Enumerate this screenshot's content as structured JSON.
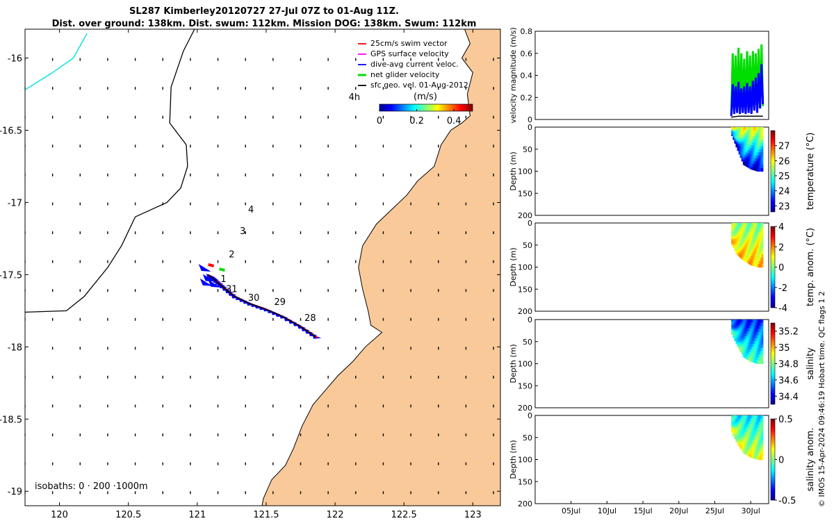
{
  "title_line1": "SL287 Kimberley20120727 27-Jul 07Z to 01-Aug 11Z.",
  "title_line2": "Dist. over ground: 138km. Dist. swum: 112km. Mission DOG: 138km. Swum: 112km",
  "credit": "© IMOS 15-Apr-2024 09:46:19 Hobart time. QC flags 1  2",
  "colors": {
    "land": "#f9c99a",
    "swim": "#ff0000",
    "gps": "#ff00ff",
    "dive": "#0000ff",
    "net": "#00dd00",
    "sfc": "#000000",
    "isobath": "#00e0e0"
  },
  "chart_data": [
    {
      "type": "scatter",
      "panel": "map",
      "xlim": [
        119.75,
        123.2
      ],
      "ylim": [
        -19.1,
        -15.8
      ],
      "xticks": [
        "120",
        "120.5",
        "121",
        "121.5",
        "122",
        "122.5",
        "123"
      ],
      "yticks": [
        "-16",
        "-16.5",
        "-17",
        "-17.5",
        "-18",
        "-18.5",
        "-19"
      ],
      "legend": {
        "placement": "top-right",
        "entries": [
          "25cm/s swim vector",
          "GPS surface velocity",
          "dive-avg current veloc.",
          "net glider velocity",
          "sfc geo. vel. 01-Aug-2012"
        ]
      },
      "colorbar": {
        "label": "(m/s)",
        "ticks": [
          "0",
          "0.2",
          "0.4"
        ],
        "range": [
          0,
          0.5
        ]
      },
      "annotations": [
        {
          "text": "4h",
          "x": 122.14,
          "y": -16.29
        },
        {
          "text": "4",
          "x": 121.39,
          "y": -17.07
        },
        {
          "text": "3",
          "x": 121.33,
          "y": -17.22
        },
        {
          "text": "2",
          "x": 121.25,
          "y": -17.38
        },
        {
          "text": "1",
          "x": 121.19,
          "y": -17.55
        },
        {
          "text": "31",
          "x": 121.25,
          "y": -17.62
        },
        {
          "text": "30",
          "x": 121.41,
          "y": -17.68
        },
        {
          "text": "29",
          "x": 121.6,
          "y": -17.71
        },
        {
          "text": "28",
          "x": 121.82,
          "y": -17.82
        }
      ],
      "isobath_label": "isobaths: 0 · 200 ·1000m",
      "track": [
        [
          121.86,
          -17.93
        ],
        [
          121.75,
          -17.86
        ],
        [
          121.62,
          -17.79
        ],
        [
          121.5,
          -17.74
        ],
        [
          121.38,
          -17.7
        ],
        [
          121.27,
          -17.65
        ],
        [
          121.18,
          -17.58
        ],
        [
          121.12,
          -17.53
        ],
        [
          121.08,
          -17.5
        ]
      ],
      "coast": [
        [
          122.94,
          -15.8
        ],
        [
          122.98,
          -15.9
        ],
        [
          122.92,
          -16.0
        ],
        [
          123.0,
          -16.1
        ],
        [
          122.96,
          -16.25
        ],
        [
          122.98,
          -16.4
        ],
        [
          122.92,
          -16.45
        ],
        [
          122.84,
          -16.5
        ],
        [
          122.77,
          -16.6
        ],
        [
          122.72,
          -16.75
        ],
        [
          122.6,
          -16.85
        ],
        [
          122.52,
          -16.95
        ],
        [
          122.41,
          -17.05
        ],
        [
          122.3,
          -17.15
        ],
        [
          122.2,
          -17.3
        ],
        [
          122.17,
          -17.45
        ],
        [
          122.2,
          -17.6
        ],
        [
          122.24,
          -17.75
        ],
        [
          122.26,
          -17.85
        ],
        [
          122.34,
          -17.9
        ],
        [
          122.22,
          -18.0
        ],
        [
          122.13,
          -18.1
        ],
        [
          122.02,
          -18.2
        ],
        [
          121.93,
          -18.3
        ],
        [
          121.84,
          -18.4
        ],
        [
          121.76,
          -18.55
        ],
        [
          121.7,
          -18.7
        ],
        [
          121.64,
          -18.82
        ],
        [
          121.54,
          -18.92
        ],
        [
          121.48,
          -19.05
        ],
        [
          121.47,
          -19.1
        ]
      ],
      "isobath_200": [
        [
          120.98,
          -15.8
        ],
        [
          120.9,
          -15.95
        ],
        [
          120.81,
          -16.2
        ],
        [
          120.8,
          -16.45
        ],
        [
          120.92,
          -16.6
        ],
        [
          120.93,
          -16.75
        ],
        [
          120.88,
          -16.9
        ],
        [
          120.78,
          -17.0
        ],
        [
          120.55,
          -17.1
        ],
        [
          120.45,
          -17.3
        ],
        [
          120.35,
          -17.45
        ],
        [
          120.18,
          -17.65
        ],
        [
          120.05,
          -17.75
        ],
        [
          119.75,
          -17.76
        ]
      ],
      "isobath_1000": [
        [
          120.2,
          -15.83
        ],
        [
          120.1,
          -16.0
        ],
        [
          119.95,
          -16.1
        ],
        [
          119.75,
          -16.22
        ]
      ]
    },
    {
      "type": "line",
      "panel": "velocity",
      "xlim": [
        0,
        32.5
      ],
      "ylim": [
        0,
        0.8
      ],
      "yticks": [
        "0",
        "0.2",
        "0.4",
        "0.6",
        "0.8"
      ],
      "ylabel": "velocity magnitude (m/s)",
      "series": [
        {
          "color": "#00dd00",
          "x": [
            27.3,
            27.5,
            27.7,
            27.9,
            28.1,
            28.3,
            28.5,
            28.7,
            28.9,
            29.1,
            29.3,
            29.5,
            29.7,
            29.9,
            30.1,
            30.3,
            30.5,
            30.7,
            30.9,
            31.1,
            31.3,
            31.5,
            31.7
          ],
          "values": [
            0.05,
            0.6,
            0.06,
            0.58,
            0.07,
            0.65,
            0.08,
            0.6,
            0.06,
            0.55,
            0.07,
            0.62,
            0.09,
            0.58,
            0.07,
            0.62,
            0.1,
            0.6,
            0.08,
            0.64,
            0.1,
            0.68,
            0.12
          ]
        },
        {
          "color": "#0000ff",
          "x": [
            27.3,
            27.5,
            27.7,
            27.9,
            28.1,
            28.3,
            28.5,
            28.7,
            28.9,
            29.1,
            29.3,
            29.5,
            29.7,
            29.9,
            30.1,
            30.3,
            30.5,
            30.7,
            30.9,
            31.1,
            31.3,
            31.5,
            31.7
          ],
          "values": [
            0.03,
            0.32,
            0.05,
            0.3,
            0.06,
            0.34,
            0.05,
            0.28,
            0.06,
            0.3,
            0.05,
            0.33,
            0.06,
            0.3,
            0.05,
            0.35,
            0.08,
            0.38,
            0.06,
            0.42,
            0.1,
            0.5,
            0.14
          ]
        },
        {
          "color": "#000000",
          "x": [
            27.3,
            28.3,
            29.3,
            30.3,
            31.3,
            31.7
          ],
          "values": [
            0.02,
            0.03,
            0.03,
            0.03,
            0.03,
            0.03
          ]
        }
      ]
    },
    {
      "type": "heatmap",
      "panel": "temperature",
      "ylabel": "Depth (m)",
      "ylim": [
        0,
        200
      ],
      "yticks": [
        "0",
        "50",
        "100",
        "150",
        "200"
      ],
      "colorbar": {
        "label": "temperature (°C)",
        "ticks": [
          "23",
          "24",
          "25",
          "26",
          "27"
        ],
        "range": [
          22.6,
          28
        ]
      },
      "bottom_depth": [
        [
          27.3,
          15
        ],
        [
          28.0,
          45
        ],
        [
          29.0,
          85
        ],
        [
          30.0,
          95
        ],
        [
          31.0,
          100
        ],
        [
          31.7,
          100
        ]
      ],
      "surface_value": 26.0,
      "deep_value": 23.0
    },
    {
      "type": "heatmap",
      "panel": "temp_anom",
      "ylabel": "Depth (m)",
      "ylim": [
        0,
        200
      ],
      "yticks": [
        "0",
        "50",
        "100",
        "150",
        "200"
      ],
      "colorbar": {
        "label": "temp. anom. (°C)",
        "ticks": [
          "-4",
          "-2",
          "0",
          "2",
          "4"
        ],
        "range": [
          -4,
          4
        ]
      },
      "bottom_depth": [
        [
          27.3,
          45
        ],
        [
          28.0,
          70
        ],
        [
          29.0,
          85
        ],
        [
          30.0,
          95
        ],
        [
          31.0,
          100
        ],
        [
          31.7,
          100
        ]
      ],
      "surface_value": 0.0,
      "deep_value": 1.5
    },
    {
      "type": "heatmap",
      "panel": "salinity",
      "ylabel": "Depth (m)",
      "ylim": [
        0,
        200
      ],
      "yticks": [
        "0",
        "50",
        "100",
        "150",
        "200"
      ],
      "colorbar": {
        "label": "salinity",
        "ticks": [
          "34.4",
          "34.6",
          "34.8",
          "35",
          "35.2"
        ],
        "range": [
          34.3,
          35.3
        ]
      },
      "bottom_depth": [
        [
          27.3,
          30
        ],
        [
          28.0,
          55
        ],
        [
          29.0,
          85
        ],
        [
          30.0,
          95
        ],
        [
          31.0,
          100
        ],
        [
          31.7,
          100
        ]
      ],
      "surface_value": 34.45,
      "deep_value": 34.75
    },
    {
      "type": "heatmap",
      "panel": "sal_anom",
      "ylabel": "Depth (m)",
      "ylim": [
        0,
        200
      ],
      "yticks": [
        "0",
        "50",
        "100",
        "150",
        "200"
      ],
      "colorbar": {
        "label": "salinity anom.",
        "ticks": [
          "-0.5",
          "0",
          "0.5"
        ],
        "range": [
          -0.5,
          0.5
        ]
      },
      "xticks": [
        "05Jul",
        "10Jul",
        "15Jul",
        "20Jul",
        "25Jul",
        "30Jul"
      ],
      "xtick_days": [
        5,
        10,
        15,
        20,
        25,
        30
      ],
      "xlim": [
        0,
        32.5
      ],
      "bottom_depth": [
        [
          27.3,
          35
        ],
        [
          28.0,
          60
        ],
        [
          29.0,
          85
        ],
        [
          30.0,
          95
        ],
        [
          31.0,
          100
        ],
        [
          31.7,
          100
        ]
      ],
      "surface_value": -0.15,
      "deep_value": 0.1
    }
  ]
}
